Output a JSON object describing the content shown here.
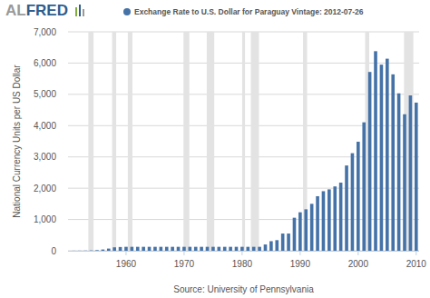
{
  "chart_data": {
    "type": "bar",
    "logo": "ALFRED",
    "y_label": "National Currency Units per US Dollar",
    "source": "Source: University of Pennsylvania",
    "legend": "top",
    "grid": true,
    "x": [
      1951,
      1952,
      1953,
      1954,
      1955,
      1956,
      1957,
      1958,
      1959,
      1960,
      1961,
      1962,
      1963,
      1964,
      1965,
      1966,
      1967,
      1968,
      1969,
      1970,
      1971,
      1972,
      1973,
      1974,
      1975,
      1976,
      1977,
      1978,
      1979,
      1980,
      1981,
      1982,
      1983,
      1984,
      1985,
      1986,
      1987,
      1988,
      1989,
      1990,
      1991,
      1992,
      1993,
      1994,
      1995,
      1996,
      1997,
      1998,
      1999,
      2000,
      2001,
      2002,
      2003,
      2004,
      2005,
      2006,
      2007,
      2008,
      2009,
      2010
    ],
    "series": [
      {
        "name": "Exchange Rate to U.S. Dollar for Paraguay Vintage: 2012-07-26",
        "color": "#4572a7",
        "values": [
          3,
          4,
          6,
          12,
          20,
          40,
          70,
          110,
          120,
          126,
          126,
          126,
          126,
          126,
          126,
          126,
          126,
          126,
          126,
          126,
          126,
          126,
          126,
          126,
          126,
          126,
          126,
          126,
          126,
          126,
          126,
          126,
          126,
          201,
          306,
          339,
          550,
          550,
          1056,
          1230,
          1325,
          1500,
          1744,
          1904,
          1963,
          2057,
          2178,
          2726,
          3119,
          3486,
          4106,
          5716,
          6380,
          5950,
          6140,
          5640,
          5032,
          4364,
          4966,
          4736
        ]
      }
    ],
    "shaded_ranges": [
      [
        1953.5,
        1954.4
      ],
      [
        1957.6,
        1958.3
      ],
      [
        1960.3,
        1961.1
      ],
      [
        1969.9,
        1970.9
      ],
      [
        1973.9,
        1975.2
      ],
      [
        1980.0,
        1980.5
      ],
      [
        1981.5,
        1982.9
      ],
      [
        1990.5,
        1991.2
      ],
      [
        2001.2,
        2001.9
      ],
      [
        2007.9,
        2009.5
      ]
    ],
    "xlim": [
      1950,
      2010.5
    ],
    "xticks": [
      1960,
      1970,
      1980,
      1990,
      2000,
      2010
    ],
    "ylim": [
      0,
      7000
    ],
    "yticks": [
      0,
      {
        "value": 1000,
        "label": "1,000"
      },
      {
        "value": 2000,
        "label": "2,000"
      },
      {
        "value": 3000,
        "label": "3,000"
      },
      {
        "value": 4000,
        "label": "4,000"
      },
      {
        "value": 5000,
        "label": "5,000"
      },
      {
        "value": 6000,
        "label": "6,000"
      },
      {
        "value": 7000,
        "label": "7,000"
      }
    ]
  }
}
